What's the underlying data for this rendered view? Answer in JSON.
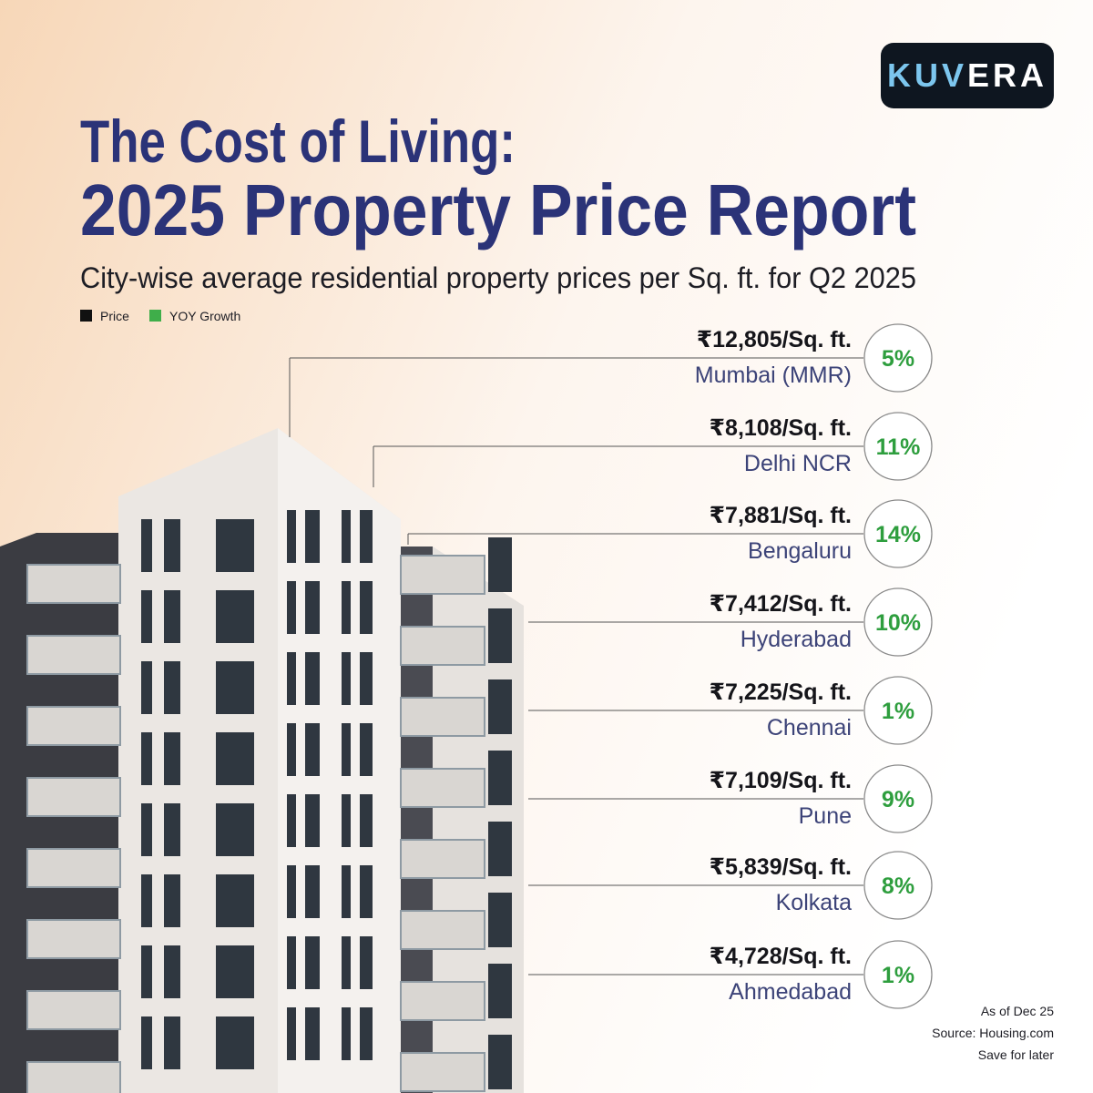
{
  "logo": "KUVERA",
  "header": {
    "title_line1": "The Cost of Living:",
    "title_line2": "2025 Property Price Report",
    "subtitle": "City-wise average residential property prices per Sq. ft. for Q2 2025"
  },
  "legend": {
    "price": "Price",
    "growth": "YOY Growth"
  },
  "rows": [
    {
      "price": "₹12,805/Sq. ft.",
      "city": "Mumbai (MMR)",
      "growth": "5%"
    },
    {
      "price": "₹8,108/Sq. ft.",
      "city": "Delhi NCR",
      "growth": "11%"
    },
    {
      "price": "₹7,881/Sq. ft.",
      "city": "Bengaluru",
      "growth": "14%"
    },
    {
      "price": "₹7,412/Sq. ft.",
      "city": "Hyderabad",
      "growth": "10%"
    },
    {
      "price": "₹7,225/Sq. ft.",
      "city": "Chennai",
      "growth": "1%"
    },
    {
      "price": "₹7,109/Sq. ft.",
      "city": "Pune",
      "growth": "9%"
    },
    {
      "price": "₹5,839/Sq. ft.",
      "city": "Kolkata",
      "growth": "8%"
    },
    {
      "price": "₹4,728/Sq. ft.",
      "city": "Ahmedabad",
      "growth": "1%"
    }
  ],
  "footer": {
    "date": "As of Dec 25",
    "source": "Source: Housing.com",
    "cta": "Save for later"
  }
}
